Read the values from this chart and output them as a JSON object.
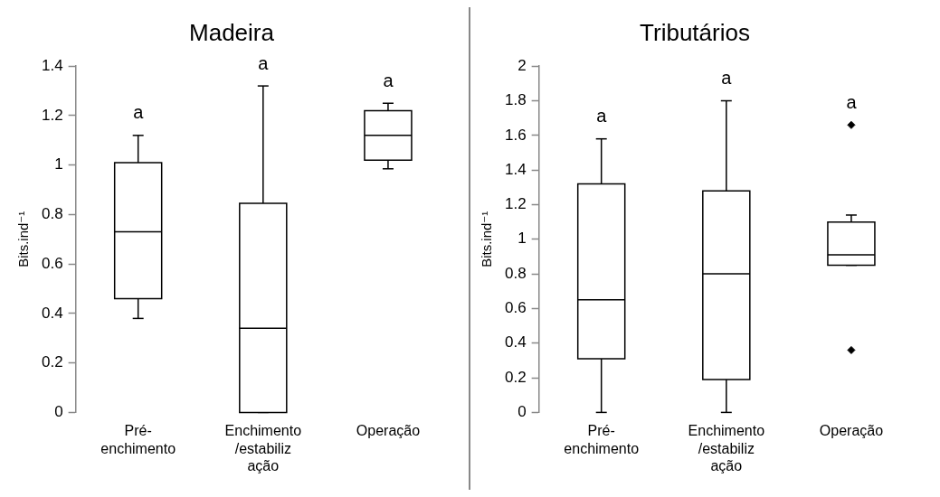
{
  "chart_data": [
    {
      "type": "box",
      "title": "Madeira",
      "ylabel": "Bits.ind⁻¹",
      "categories": [
        "Pré-enchimento",
        "Enchimento/estabilização",
        "Operação"
      ],
      "ylim": [
        0,
        1.4
      ],
      "yticks": [
        0,
        0.2,
        0.4,
        0.6,
        0.8,
        1,
        1.2,
        1.4
      ],
      "grid": false,
      "legend": false,
      "boxes": [
        {
          "low": 0.38,
          "q1": 0.46,
          "median": 0.73,
          "q3": 1.01,
          "high": 1.12
        },
        {
          "low": 0,
          "q1": 0,
          "median": 0.34,
          "q3": 0.845,
          "high": 1.32
        },
        {
          "low": 0.985,
          "q1": 1.02,
          "median": 1.12,
          "q3": 1.22,
          "high": 1.25
        }
      ],
      "annotations": [
        "a",
        "a",
        "a"
      ]
    },
    {
      "type": "box",
      "title": "Tributários",
      "ylabel": "Bits.ind⁻¹",
      "categories": [
        "Pré-enchimento",
        "Enchimento/estabilização",
        "Operação"
      ],
      "ylim": [
        0,
        2
      ],
      "yticks": [
        0,
        0.2,
        0.4,
        0.6,
        0.8,
        1,
        1.2,
        1.4,
        1.6,
        1.8,
        2
      ],
      "grid": false,
      "legend": false,
      "boxes": [
        {
          "low": 0,
          "q1": 0.31,
          "median": 0.65,
          "q3": 1.32,
          "high": 1.58
        },
        {
          "low": 0,
          "q1": 0.19,
          "median": 0.8,
          "q3": 1.28,
          "high": 1.8
        },
        {
          "low": 0.85,
          "q1": 0.85,
          "median": 0.91,
          "q3": 1.1,
          "high": 1.14,
          "outliers": [
            1.66,
            0.36
          ]
        }
      ],
      "annotations": [
        "a",
        "a",
        "a"
      ]
    }
  ]
}
